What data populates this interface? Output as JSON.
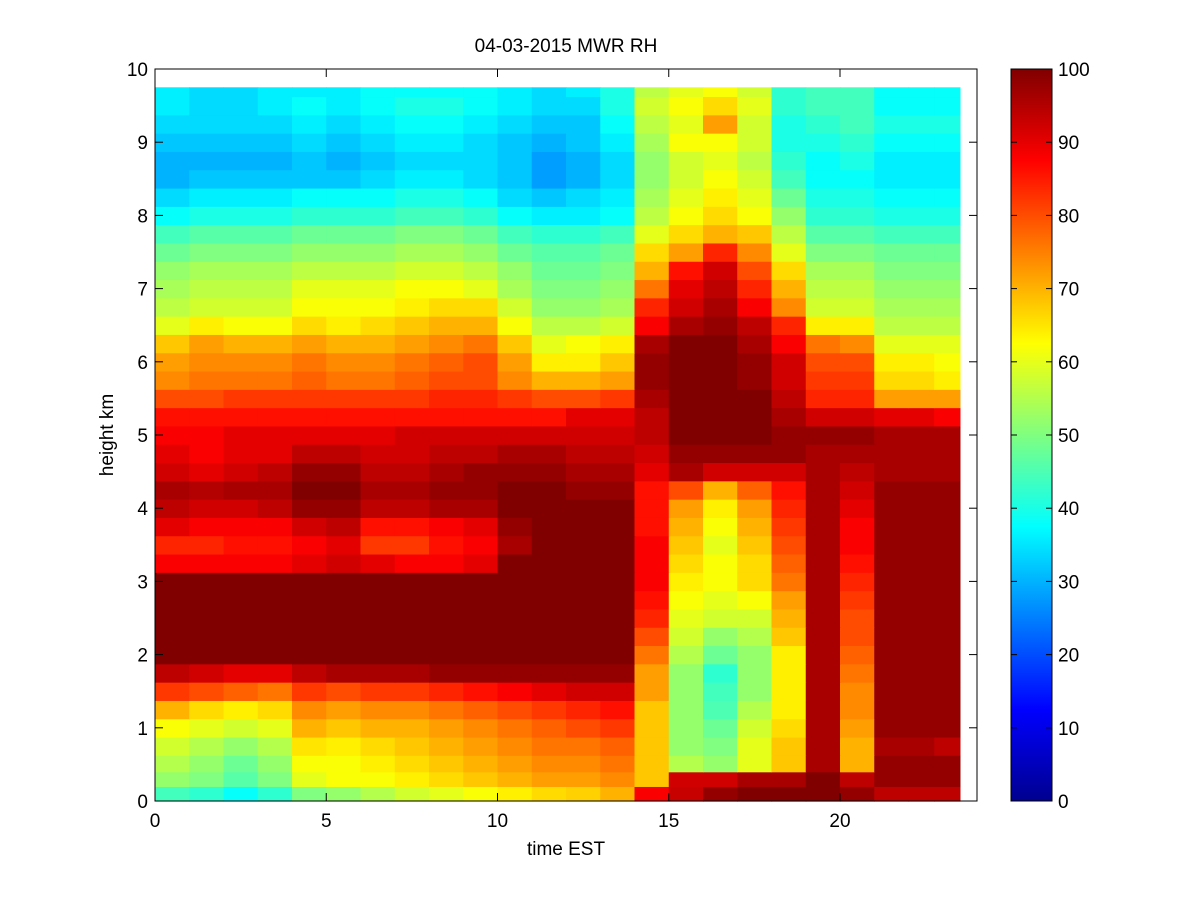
{
  "chart_data": {
    "type": "heatmap",
    "title": "04-03-2015 MWR RH",
    "xlabel": "time EST",
    "ylabel": "height km",
    "xlim": [
      0,
      24
    ],
    "ylim": [
      0,
      10
    ],
    "x_ticks": [
      0,
      5,
      10,
      15,
      20
    ],
    "y_ticks": [
      0,
      1,
      2,
      3,
      4,
      5,
      6,
      7,
      8,
      9,
      10
    ],
    "grid": false,
    "x_centers": [
      0.5,
      1.5,
      2.5,
      3.5,
      4.5,
      5.5,
      6.5,
      7.5,
      8.5,
      9.5,
      10.5,
      11.5,
      12.5,
      13.5,
      14.5,
      15.5,
      16.5,
      17.5,
      18.5,
      19.5,
      20.5,
      21.5,
      22.5,
      23.0
    ],
    "y_levels": [
      0.1,
      0.3,
      0.5,
      0.75,
      1.0,
      1.25,
      1.5,
      1.75,
      2.0,
      2.25,
      2.5,
      2.75,
      3.0,
      3.25,
      3.5,
      3.75,
      4.0,
      4.25,
      4.5,
      4.75,
      5.0,
      5.25,
      5.5,
      5.75,
      6.0,
      6.25,
      6.5,
      6.75,
      7.0,
      7.25,
      7.5,
      7.75,
      8.0,
      8.25,
      8.5,
      8.75,
      9.0,
      9.25,
      9.5,
      9.75
    ],
    "values": [
      [
        44,
        42,
        38,
        42,
        50,
        52,
        55,
        58,
        60,
        62,
        64,
        66,
        67,
        70,
        88,
        93,
        98,
        100,
        100,
        100,
        98,
        94,
        94,
        94
      ],
      [
        52,
        50,
        46,
        50,
        60,
        62,
        62,
        64,
        66,
        68,
        70,
        72,
        72,
        74,
        68,
        92,
        92,
        96,
        96,
        100,
        94,
        98,
        98,
        98
      ],
      [
        55,
        52,
        48,
        52,
        62,
        62,
        64,
        66,
        68,
        70,
        72,
        74,
        74,
        76,
        68,
        55,
        52,
        60,
        68,
        96,
        70,
        98,
        98,
        98
      ],
      [
        58,
        55,
        52,
        55,
        65,
        64,
        66,
        68,
        70,
        72,
        74,
        76,
        76,
        78,
        68,
        52,
        50,
        60,
        68,
        96,
        70,
        96,
        96,
        94
      ],
      [
        62,
        60,
        58,
        60,
        70,
        68,
        70,
        70,
        72,
        74,
        76,
        78,
        80,
        82,
        68,
        52,
        48,
        58,
        66,
        96,
        72,
        98,
        98,
        98
      ],
      [
        70,
        66,
        64,
        66,
        74,
        72,
        74,
        74,
        76,
        78,
        80,
        82,
        84,
        86,
        68,
        52,
        45,
        55,
        64,
        96,
        74,
        98,
        98,
        98
      ],
      [
        82,
        80,
        78,
        76,
        82,
        80,
        82,
        82,
        84,
        86,
        88,
        90,
        92,
        92,
        72,
        52,
        44,
        52,
        64,
        96,
        74,
        98,
        98,
        98
      ],
      [
        94,
        92,
        90,
        90,
        94,
        96,
        96,
        96,
        98,
        98,
        98,
        98,
        98,
        98,
        72,
        52,
        42,
        52,
        64,
        96,
        76,
        98,
        98,
        98
      ],
      [
        100,
        100,
        100,
        100,
        100,
        100,
        100,
        100,
        100,
        100,
        100,
        100,
        100,
        100,
        76,
        55,
        48,
        52,
        64,
        96,
        78,
        98,
        98,
        98
      ],
      [
        100,
        100,
        100,
        100,
        100,
        100,
        100,
        100,
        100,
        100,
        100,
        100,
        100,
        100,
        80,
        58,
        52,
        55,
        68,
        96,
        80,
        98,
        98,
        98
      ],
      [
        100,
        100,
        100,
        100,
        100,
        100,
        100,
        100,
        100,
        100,
        100,
        100,
        100,
        100,
        84,
        60,
        58,
        58,
        70,
        96,
        80,
        98,
        98,
        98
      ],
      [
        100,
        100,
        100,
        100,
        100,
        100,
        100,
        100,
        100,
        100,
        100,
        100,
        100,
        100,
        86,
        62,
        60,
        62,
        72,
        96,
        82,
        98,
        98,
        98
      ],
      [
        100,
        100,
        100,
        100,
        100,
        100,
        100,
        100,
        100,
        100,
        100,
        100,
        100,
        100,
        88,
        64,
        62,
        66,
        76,
        96,
        84,
        98,
        98,
        98
      ],
      [
        88,
        88,
        88,
        88,
        90,
        92,
        90,
        88,
        88,
        90,
        100,
        100,
        100,
        100,
        88,
        66,
        62,
        66,
        78,
        96,
        86,
        98,
        98,
        98
      ],
      [
        84,
        84,
        86,
        86,
        88,
        90,
        82,
        82,
        86,
        88,
        96,
        100,
        100,
        100,
        88,
        68,
        60,
        68,
        80,
        96,
        88,
        98,
        98,
        98
      ],
      [
        90,
        88,
        88,
        88,
        92,
        94,
        86,
        86,
        88,
        90,
        98,
        100,
        100,
        100,
        86,
        70,
        62,
        70,
        82,
        96,
        88,
        98,
        98,
        98
      ],
      [
        94,
        92,
        92,
        94,
        98,
        98,
        94,
        94,
        96,
        96,
        100,
        100,
        100,
        100,
        86,
        72,
        64,
        72,
        84,
        96,
        90,
        98,
        98,
        98
      ],
      [
        96,
        95,
        96,
        96,
        100,
        100,
        96,
        96,
        98,
        98,
        100,
        100,
        98,
        98,
        86,
        80,
        70,
        78,
        86,
        96,
        92,
        98,
        98,
        98
      ],
      [
        92,
        90,
        92,
        94,
        98,
        98,
        94,
        94,
        96,
        98,
        98,
        98,
        96,
        96,
        90,
        96,
        92,
        92,
        92,
        96,
        94,
        96,
        96,
        96
      ],
      [
        90,
        88,
        90,
        90,
        94,
        94,
        92,
        92,
        94,
        94,
        96,
        96,
        94,
        94,
        92,
        98,
        98,
        98,
        98,
        96,
        96,
        96,
        96,
        96
      ],
      [
        88,
        88,
        90,
        90,
        90,
        90,
        90,
        92,
        92,
        92,
        92,
        92,
        92,
        92,
        94,
        100,
        100,
        100,
        98,
        98,
        98,
        96,
        96,
        96
      ],
      [
        86,
        86,
        86,
        86,
        86,
        86,
        86,
        86,
        86,
        86,
        86,
        86,
        90,
        90,
        94,
        100,
        100,
        100,
        96,
        92,
        92,
        90,
        90,
        88
      ],
      [
        80,
        80,
        82,
        82,
        82,
        82,
        82,
        82,
        84,
        84,
        82,
        80,
        80,
        82,
        96,
        100,
        100,
        100,
        94,
        84,
        84,
        72,
        72,
        72
      ],
      [
        74,
        76,
        76,
        76,
        78,
        76,
        76,
        78,
        80,
        80,
        74,
        70,
        70,
        72,
        98,
        100,
        100,
        98,
        92,
        82,
        82,
        66,
        66,
        64
      ],
      [
        72,
        74,
        74,
        74,
        76,
        74,
        74,
        76,
        78,
        80,
        72,
        64,
        64,
        68,
        98,
        100,
        100,
        98,
        92,
        80,
        80,
        64,
        64,
        62
      ],
      [
        68,
        72,
        70,
        70,
        72,
        70,
        70,
        72,
        74,
        76,
        68,
        60,
        62,
        64,
        96,
        100,
        100,
        96,
        88,
        76,
        74,
        60,
        60,
        60
      ],
      [
        60,
        64,
        62,
        62,
        66,
        64,
        66,
        68,
        70,
        70,
        62,
        56,
        56,
        58,
        88,
        96,
        98,
        94,
        84,
        64,
        64,
        56,
        56,
        56
      ],
      [
        56,
        58,
        58,
        58,
        62,
        62,
        62,
        64,
        66,
        66,
        58,
        52,
        52,
        54,
        84,
        92,
        96,
        88,
        74,
        58,
        58,
        54,
        54,
        54
      ],
      [
        54,
        56,
        56,
        56,
        60,
        60,
        60,
        62,
        62,
        60,
        54,
        50,
        50,
        52,
        76,
        90,
        94,
        84,
        70,
        56,
        56,
        52,
        52,
        52
      ],
      [
        52,
        54,
        54,
        54,
        56,
        56,
        56,
        58,
        58,
        56,
        52,
        48,
        48,
        50,
        70,
        86,
        92,
        80,
        66,
        54,
        54,
        50,
        50,
        50
      ],
      [
        48,
        50,
        50,
        50,
        52,
        52,
        52,
        54,
        54,
        52,
        48,
        46,
        46,
        48,
        66,
        72,
        84,
        74,
        60,
        50,
        50,
        48,
        48,
        48
      ],
      [
        44,
        46,
        46,
        46,
        48,
        48,
        48,
        50,
        50,
        48,
        44,
        42,
        42,
        44,
        60,
        66,
        70,
        68,
        56,
        46,
        46,
        44,
        44,
        44
      ],
      [
        38,
        40,
        40,
        40,
        42,
        42,
        42,
        44,
        44,
        42,
        38,
        36,
        36,
        38,
        56,
        62,
        66,
        62,
        52,
        42,
        42,
        40,
        40,
        40
      ],
      [
        34,
        36,
        36,
        36,
        38,
        38,
        38,
        40,
        40,
        38,
        34,
        32,
        34,
        36,
        54,
        60,
        64,
        60,
        48,
        40,
        40,
        38,
        38,
        38
      ],
      [
        30,
        32,
        32,
        32,
        32,
        32,
        34,
        36,
        36,
        34,
        32,
        28,
        30,
        34,
        52,
        58,
        62,
        58,
        44,
        38,
        38,
        36,
        36,
        36
      ],
      [
        30,
        30,
        30,
        30,
        32,
        30,
        32,
        34,
        34,
        34,
        32,
        28,
        30,
        34,
        52,
        58,
        60,
        56,
        42,
        38,
        40,
        36,
        36,
        36
      ],
      [
        32,
        32,
        32,
        32,
        34,
        32,
        34,
        36,
        36,
        34,
        32,
        30,
        32,
        36,
        54,
        62,
        62,
        58,
        40,
        40,
        42,
        38,
        38,
        38
      ],
      [
        34,
        34,
        34,
        34,
        36,
        34,
        36,
        38,
        38,
        36,
        34,
        32,
        32,
        38,
        56,
        60,
        72,
        58,
        40,
        42,
        44,
        40,
        40,
        40
      ],
      [
        36,
        34,
        34,
        36,
        38,
        36,
        38,
        40,
        40,
        38,
        36,
        34,
        34,
        40,
        58,
        62,
        66,
        60,
        42,
        44,
        44,
        38,
        38,
        38
      ],
      [
        36,
        34,
        34,
        36,
        36,
        36,
        38,
        38,
        38,
        38,
        36,
        34,
        36,
        40,
        56,
        60,
        62,
        58,
        42,
        44,
        44,
        38,
        38,
        38
      ]
    ],
    "colorbar": {
      "min": 0,
      "max": 100,
      "ticks": [
        0,
        10,
        20,
        30,
        40,
        50,
        60,
        70,
        80,
        90,
        100
      ],
      "colormap": "jet"
    }
  }
}
